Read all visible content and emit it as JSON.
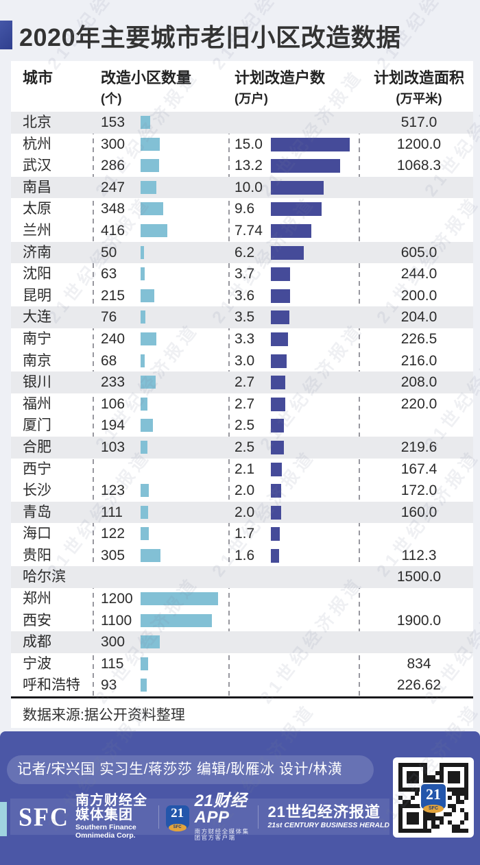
{
  "title": "2020年主要城市老旧小区改造数据",
  "watermark": {
    "text": "21世纪经济报道"
  },
  "table": {
    "headers": {
      "city": "城市",
      "count_l1": "改造小区数量",
      "count_l2": "(个)",
      "households_l1": "计划改造户数",
      "households_l2": "(万户)",
      "area_l1": "计划改造面积",
      "area_l2": "(万平米)"
    },
    "rows": [
      {
        "city": "北京",
        "count": "153",
        "households": "",
        "area": "517.0"
      },
      {
        "city": "杭州",
        "count": "300",
        "households": "15.0",
        "area": "1200.0"
      },
      {
        "city": "武汉",
        "count": "286",
        "households": "13.2",
        "area": "1068.3"
      },
      {
        "city": "南昌",
        "count": "247",
        "households": "10.0",
        "area": ""
      },
      {
        "city": "太原",
        "count": "348",
        "households": "9.6",
        "area": ""
      },
      {
        "city": "兰州",
        "count": "416",
        "households": "7.74",
        "area": ""
      },
      {
        "city": "济南",
        "count": "50",
        "households": "6.2",
        "area": "605.0"
      },
      {
        "city": "沈阳",
        "count": "63",
        "households": "3.7",
        "area": "244.0"
      },
      {
        "city": "昆明",
        "count": "215",
        "households": "3.6",
        "area": "200.0"
      },
      {
        "city": "大连",
        "count": "76",
        "households": "3.5",
        "area": "204.0"
      },
      {
        "city": "南宁",
        "count": "240",
        "households": "3.3",
        "area": "226.5"
      },
      {
        "city": "南京",
        "count": "68",
        "households": "3.0",
        "area": "216.0"
      },
      {
        "city": "银川",
        "count": "233",
        "households": "2.7",
        "area": "208.0"
      },
      {
        "city": "福州",
        "count": "106",
        "households": "2.7",
        "area": "220.0"
      },
      {
        "city": "厦门",
        "count": "194",
        "households": "2.5",
        "area": ""
      },
      {
        "city": "合肥",
        "count": "103",
        "households": "2.5",
        "area": "219.6"
      },
      {
        "city": "西宁",
        "count": "",
        "households": "2.1",
        "area": "167.4"
      },
      {
        "city": "长沙",
        "count": "123",
        "households": "2.0",
        "area": "172.0"
      },
      {
        "city": "青岛",
        "count": "111",
        "households": "2.0",
        "area": "160.0"
      },
      {
        "city": "海口",
        "count": "122",
        "households": "1.7",
        "area": ""
      },
      {
        "city": "贵阳",
        "count": "305",
        "households": "1.6",
        "area": "112.3"
      },
      {
        "city": "哈尔滨",
        "count": "",
        "households": "",
        "area": "1500.0"
      },
      {
        "city": "郑州",
        "count": "1200",
        "households": "",
        "area": ""
      },
      {
        "city": "西安",
        "count": "1100",
        "households": "",
        "area": "1900.0"
      },
      {
        "city": "成都",
        "count": "300",
        "households": "",
        "area": ""
      },
      {
        "city": "宁波",
        "count": "115",
        "households": "",
        "area": "834"
      },
      {
        "city": "呼和浩特",
        "count": "93",
        "households": "",
        "area": "226.62"
      }
    ]
  },
  "source": "数据来源:据公开资料整理",
  "footer": {
    "credits": "记者/宋兴国  实习生/蒋莎莎  编辑/耿雁冰  设计/林潢",
    "sfc_logo": "SFC",
    "sfc_name_cn": "南方财经全媒体集团",
    "sfc_name_en": "Southern Finance Omnimedia Corp.",
    "app_icon": "21",
    "app_icon_badge": "SFC",
    "app_name": "21财经APP",
    "app_sub": "南方财经全媒体集团官方客户端",
    "herald_cn": "21世纪经济报道",
    "herald_en": "21st CENTURY BUSINESS HERALD",
    "qr_center": "21",
    "qr_badge": "SFC"
  },
  "colors": {
    "page_bg": "#eef0f5",
    "card_bg": "#ffffff",
    "stripe": "#e9eaed",
    "light_bar": "#82c0d5",
    "dark_bar": "#454b99",
    "title_square": "#3c4b9b",
    "footer_bg": "#4b57a6",
    "teal_stripe": "#9fd3e0",
    "gold_badge": "#e2a43c"
  },
  "chart_data": {
    "type": "bar",
    "title": "2020年主要城市老旧小区改造数据",
    "source": "数据来源:据公开资料整理",
    "categories": [
      "北京",
      "杭州",
      "武汉",
      "南昌",
      "太原",
      "兰州",
      "济南",
      "沈阳",
      "昆明",
      "大连",
      "南宁",
      "南京",
      "银川",
      "福州",
      "厦门",
      "合肥",
      "西宁",
      "长沙",
      "青岛",
      "海口",
      "贵阳",
      "哈尔滨",
      "郑州",
      "西安",
      "成都",
      "宁波",
      "呼和浩特"
    ],
    "series": [
      {
        "name": "改造小区数量(个)",
        "color": "#82c0d5",
        "values": [
          153,
          300,
          286,
          247,
          348,
          416,
          50,
          63,
          215,
          76,
          240,
          68,
          233,
          106,
          194,
          103,
          null,
          123,
          111,
          122,
          305,
          null,
          1200,
          1100,
          300,
          115,
          93
        ]
      },
      {
        "name": "计划改造户数(万户)",
        "color": "#454b99",
        "values": [
          null,
          15.0,
          13.2,
          10.0,
          9.6,
          7.74,
          6.2,
          3.7,
          3.6,
          3.5,
          3.3,
          3.0,
          2.7,
          2.7,
          2.5,
          2.5,
          2.1,
          2.0,
          2.0,
          1.7,
          1.6,
          null,
          null,
          null,
          null,
          null,
          null
        ]
      },
      {
        "name": "计划改造面积(万平米)",
        "color": null,
        "values": [
          517.0,
          1200.0,
          1068.3,
          null,
          null,
          null,
          605.0,
          244.0,
          200.0,
          204.0,
          226.5,
          216.0,
          208.0,
          220.0,
          null,
          219.6,
          167.4,
          172.0,
          160.0,
          null,
          112.3,
          1500.0,
          null,
          1900.0,
          null,
          834,
          226.62
        ]
      }
    ],
    "layout_hints": {
      "orientation": "horizontal",
      "bars_only_for_first_two_series": true,
      "grid": "dashed-column-separators"
    }
  }
}
